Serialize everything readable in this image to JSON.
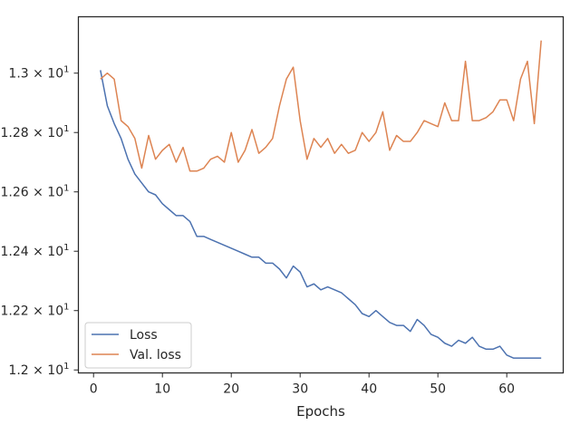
{
  "chart_data": {
    "type": "line",
    "title": "",
    "xlabel": "Epochs",
    "ylabel": "",
    "xlim": [
      -2.2,
      68.2
    ],
    "ylim": [
      11.99,
      13.19
    ],
    "x_ticks": [
      0,
      10,
      20,
      30,
      40,
      50,
      60
    ],
    "y_ticks": [
      {
        "value": 12.0,
        "base": "1.2",
        "exp": "1"
      },
      {
        "value": 12.2,
        "base": "1.22",
        "exp": "1"
      },
      {
        "value": 12.4,
        "base": "1.24",
        "exp": "1"
      },
      {
        "value": 12.6,
        "base": "1.26",
        "exp": "1"
      },
      {
        "value": 12.8,
        "base": "1.28",
        "exp": "1"
      },
      {
        "value": 13.0,
        "base": "1.3",
        "exp": "1"
      }
    ],
    "grid": false,
    "legend_position": "lower-left",
    "x": [
      1,
      2,
      3,
      4,
      5,
      6,
      7,
      8,
      9,
      10,
      11,
      12,
      13,
      14,
      15,
      16,
      17,
      18,
      19,
      20,
      21,
      22,
      23,
      24,
      25,
      26,
      27,
      28,
      29,
      30,
      31,
      32,
      33,
      34,
      35,
      36,
      37,
      38,
      39,
      40,
      41,
      42,
      43,
      44,
      45,
      46,
      47,
      48,
      49,
      50,
      51,
      52,
      53,
      54,
      55,
      56,
      57,
      58,
      59,
      60,
      61,
      62,
      63,
      64,
      65
    ],
    "series": [
      {
        "name": "Loss",
        "color": "#4c72b0",
        "values": [
          13.01,
          12.89,
          12.83,
          12.78,
          12.71,
          12.66,
          12.63,
          12.6,
          12.59,
          12.56,
          12.54,
          12.52,
          12.52,
          12.5,
          12.45,
          12.45,
          12.44,
          12.43,
          12.42,
          12.41,
          12.4,
          12.39,
          12.38,
          12.38,
          12.36,
          12.36,
          12.34,
          12.31,
          12.35,
          12.33,
          12.28,
          12.29,
          12.27,
          12.28,
          12.27,
          12.26,
          12.24,
          12.22,
          12.19,
          12.18,
          12.2,
          12.18,
          12.16,
          12.15,
          12.15,
          12.13,
          12.17,
          12.15,
          12.12,
          12.11,
          12.09,
          12.08,
          12.1,
          12.09,
          12.11,
          12.08,
          12.07,
          12.07,
          12.08,
          12.05,
          12.04,
          12.04,
          12.04,
          12.04,
          12.04
        ]
      },
      {
        "name": "Val. loss",
        "color": "#dd8452",
        "values": [
          12.98,
          13.0,
          12.98,
          12.84,
          12.82,
          12.78,
          12.68,
          12.79,
          12.71,
          12.74,
          12.76,
          12.7,
          12.75,
          12.67,
          12.67,
          12.68,
          12.71,
          12.72,
          12.7,
          12.8,
          12.7,
          12.74,
          12.81,
          12.73,
          12.75,
          12.78,
          12.89,
          12.98,
          13.02,
          12.84,
          12.71,
          12.78,
          12.75,
          12.78,
          12.73,
          12.76,
          12.73,
          12.74,
          12.8,
          12.77,
          12.8,
          12.87,
          12.74,
          12.79,
          12.77,
          12.77,
          12.8,
          12.84,
          12.83,
          12.82,
          12.9,
          12.84,
          12.84,
          13.04,
          12.84,
          12.84,
          12.85,
          12.87,
          12.91,
          12.91,
          12.84,
          12.98,
          13.04,
          12.83,
          13.11
        ]
      }
    ]
  }
}
